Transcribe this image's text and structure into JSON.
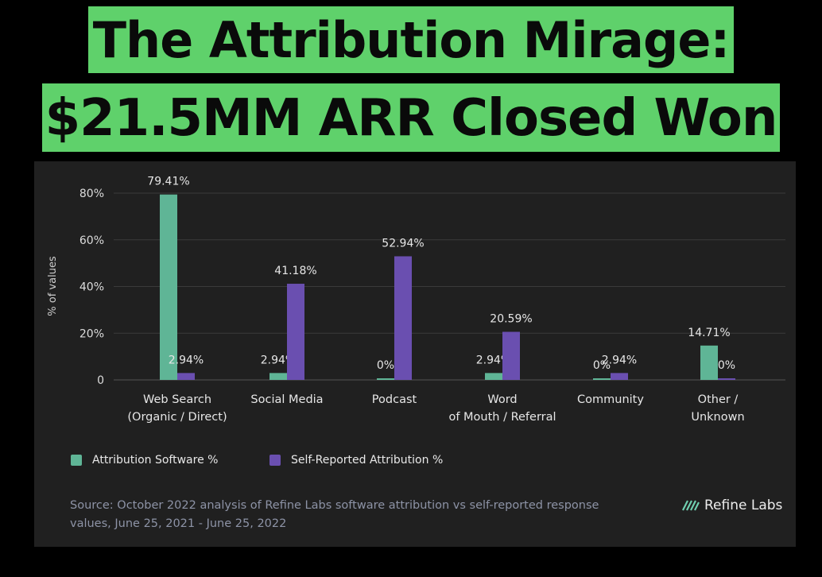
{
  "headline": {
    "line1": "The Attribution Mirage:",
    "line2": "$21.5MM ARR Closed Won"
  },
  "colors": {
    "headline_bg": "#5fd16b",
    "attribution_software": "#5fb596",
    "self_reported": "#6a4fb0"
  },
  "chart_data": {
    "type": "bar",
    "title": "",
    "xlabel": "",
    "ylabel": "% of values",
    "ylim": [
      0,
      80
    ],
    "y_ticks": [
      "0",
      "20%",
      "40%",
      "60%",
      "80%"
    ],
    "grid": true,
    "legend_position": "bottom-left",
    "categories": [
      [
        "Web Search",
        "(Organic / Direct)"
      ],
      [
        "Social Media"
      ],
      [
        "Podcast"
      ],
      [
        "Word",
        "of Mouth / Referral"
      ],
      [
        "Community"
      ],
      [
        "Other /",
        "Unknown"
      ]
    ],
    "series": [
      {
        "name": "Attribution Software %",
        "values": [
          79.41,
          2.94,
          0,
          2.94,
          0,
          14.71
        ],
        "labels": [
          "79.41%",
          "2.94%",
          "0%",
          "2.94%",
          "0%",
          "14.71%"
        ]
      },
      {
        "name": "Self-Reported Attribution %",
        "values": [
          2.94,
          41.18,
          52.94,
          20.59,
          2.94,
          0
        ],
        "labels": [
          "2.94%",
          "41.18%",
          "52.94%",
          "20.59%",
          "2.94%",
          "0%"
        ]
      }
    ]
  },
  "footer": {
    "source_line1": "Source: October 2022 analysis of Refine Labs software attribution vs self-reported response",
    "source_line2": "values, June 25, 2021 - June 25, 2022",
    "brand": "Refine Labs",
    "brand_icon": "refine-labs-logo-icon"
  }
}
